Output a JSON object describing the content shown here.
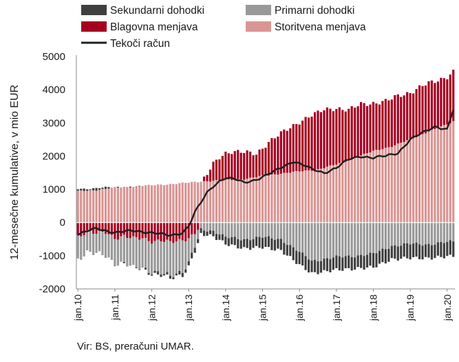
{
  "chart_data": {
    "type": "bar",
    "subtype": "stacked-bar-with-line",
    "title": "",
    "ylabel": "12-mesečne kumulative, v mio EUR",
    "xlabel": "",
    "source": "Vir: BS, preračuni UMAR.",
    "ylim": [
      -2000,
      5000
    ],
    "yticks": [
      -2000,
      -1000,
      0,
      1000,
      2000,
      3000,
      4000,
      5000
    ],
    "xticks": [
      "jan.10",
      "jan.11",
      "jan.12",
      "jan.13",
      "jan.14",
      "jan.15",
      "jan.16",
      "jan.17",
      "jan.18",
      "jan.19",
      "jan.20"
    ],
    "grid": false,
    "legend_position": "top",
    "frequency": "monthly",
    "x_start": "jan.10",
    "x_end": "jan.20",
    "legend": [
      {
        "key": "sekundarni",
        "label": "Sekundarni dohodki",
        "color": "#3f3f3f",
        "kind": "bar"
      },
      {
        "key": "primarni",
        "label": "Primarni dohodki",
        "color": "#999999",
        "kind": "bar"
      },
      {
        "key": "blagovna",
        "label": "Blagovna menjava",
        "color": "#a50021",
        "kind": "bar"
      },
      {
        "key": "storitvena",
        "label": "Storitvena menjava",
        "color": "#d99593",
        "kind": "bar"
      },
      {
        "key": "tekoci",
        "label": "Tekoči račun",
        "color": "#1f1f1f",
        "kind": "line"
      }
    ],
    "series_anchors": {
      "storitvena": [
        [
          0,
          940
        ],
        [
          6,
          980
        ],
        [
          12,
          1050
        ],
        [
          24,
          1120
        ],
        [
          36,
          1200
        ],
        [
          42,
          1250
        ],
        [
          48,
          1280
        ],
        [
          54,
          1310
        ],
        [
          60,
          1400
        ],
        [
          66,
          1480
        ],
        [
          72,
          1540
        ],
        [
          78,
          1600
        ],
        [
          84,
          1750
        ],
        [
          90,
          1950
        ],
        [
          96,
          2150
        ],
        [
          102,
          2300
        ],
        [
          108,
          2500
        ],
        [
          114,
          2750
        ],
        [
          120,
          2950
        ],
        [
          122,
          3050
        ]
      ],
      "blagovna": [
        [
          0,
          -400
        ],
        [
          3,
          -260
        ],
        [
          6,
          -350
        ],
        [
          9,
          -300
        ],
        [
          12,
          -450
        ],
        [
          15,
          -400
        ],
        [
          18,
          -500
        ],
        [
          21,
          -480
        ],
        [
          24,
          -550
        ],
        [
          27,
          -530
        ],
        [
          30,
          -620
        ],
        [
          33,
          -560
        ],
        [
          36,
          -450
        ],
        [
          38,
          -300
        ],
        [
          40,
          -50
        ],
        [
          42,
          200
        ],
        [
          44,
          500
        ],
        [
          46,
          700
        ],
        [
          48,
          820
        ],
        [
          50,
          850
        ],
        [
          54,
          800
        ],
        [
          58,
          700
        ],
        [
          62,
          1000
        ],
        [
          66,
          1200
        ],
        [
          72,
          1500
        ],
        [
          76,
          1650
        ],
        [
          80,
          1750
        ],
        [
          84,
          1700
        ],
        [
          88,
          1500
        ],
        [
          92,
          1550
        ],
        [
          96,
          1450
        ],
        [
          100,
          1400
        ],
        [
          104,
          1450
        ],
        [
          108,
          1420
        ],
        [
          112,
          1450
        ],
        [
          116,
          1430
        ],
        [
          120,
          1450
        ],
        [
          122,
          1500
        ]
      ],
      "primarni": [
        [
          0,
          -720
        ],
        [
          6,
          -580
        ],
        [
          12,
          -800
        ],
        [
          18,
          -850
        ],
        [
          24,
          -950
        ],
        [
          30,
          -1000
        ],
        [
          34,
          -950
        ],
        [
          36,
          -750
        ],
        [
          38,
          -400
        ],
        [
          40,
          -200
        ],
        [
          44,
          -250
        ],
        [
          48,
          -450
        ],
        [
          54,
          -500
        ],
        [
          60,
          -450
        ],
        [
          66,
          -500
        ],
        [
          72,
          -900
        ],
        [
          76,
          -1150
        ],
        [
          80,
          -1100
        ],
        [
          84,
          -1050
        ],
        [
          90,
          -1000
        ],
        [
          96,
          -950
        ],
        [
          102,
          -700
        ],
        [
          108,
          -650
        ],
        [
          114,
          -650
        ],
        [
          120,
          -600
        ],
        [
          122,
          -580
        ]
      ],
      "sekundarni": [
        [
          0,
          80
        ],
        [
          10,
          30
        ],
        [
          20,
          -20
        ],
        [
          30,
          -80
        ],
        [
          36,
          -120
        ],
        [
          42,
          -150
        ],
        [
          48,
          -200
        ],
        [
          54,
          -280
        ],
        [
          60,
          -300
        ],
        [
          72,
          -380
        ],
        [
          84,
          -380
        ],
        [
          96,
          -400
        ],
        [
          108,
          -420
        ],
        [
          122,
          -430
        ]
      ],
      "tekoci": [
        [
          0,
          -350
        ],
        [
          6,
          -180
        ],
        [
          12,
          -300
        ],
        [
          18,
          -250
        ],
        [
          24,
          -300
        ],
        [
          30,
          -400
        ],
        [
          34,
          -300
        ],
        [
          36,
          -100
        ],
        [
          38,
          300
        ],
        [
          40,
          600
        ],
        [
          42,
          900
        ],
        [
          44,
          1100
        ],
        [
          46,
          1250
        ],
        [
          48,
          1350
        ],
        [
          51,
          1300
        ],
        [
          54,
          1200
        ],
        [
          58,
          1300
        ],
        [
          62,
          1450
        ],
        [
          66,
          1650
        ],
        [
          70,
          1850
        ],
        [
          74,
          1700
        ],
        [
          76,
          1600
        ],
        [
          78,
          1550
        ],
        [
          80,
          1500
        ],
        [
          84,
          1650
        ],
        [
          88,
          1900
        ],
        [
          92,
          2000
        ],
        [
          96,
          1950
        ],
        [
          100,
          2000
        ],
        [
          104,
          2100
        ],
        [
          108,
          2500
        ],
        [
          112,
          2700
        ],
        [
          116,
          2900
        ],
        [
          118,
          2850
        ],
        [
          120,
          2800
        ],
        [
          122,
          3400
        ]
      ]
    }
  }
}
